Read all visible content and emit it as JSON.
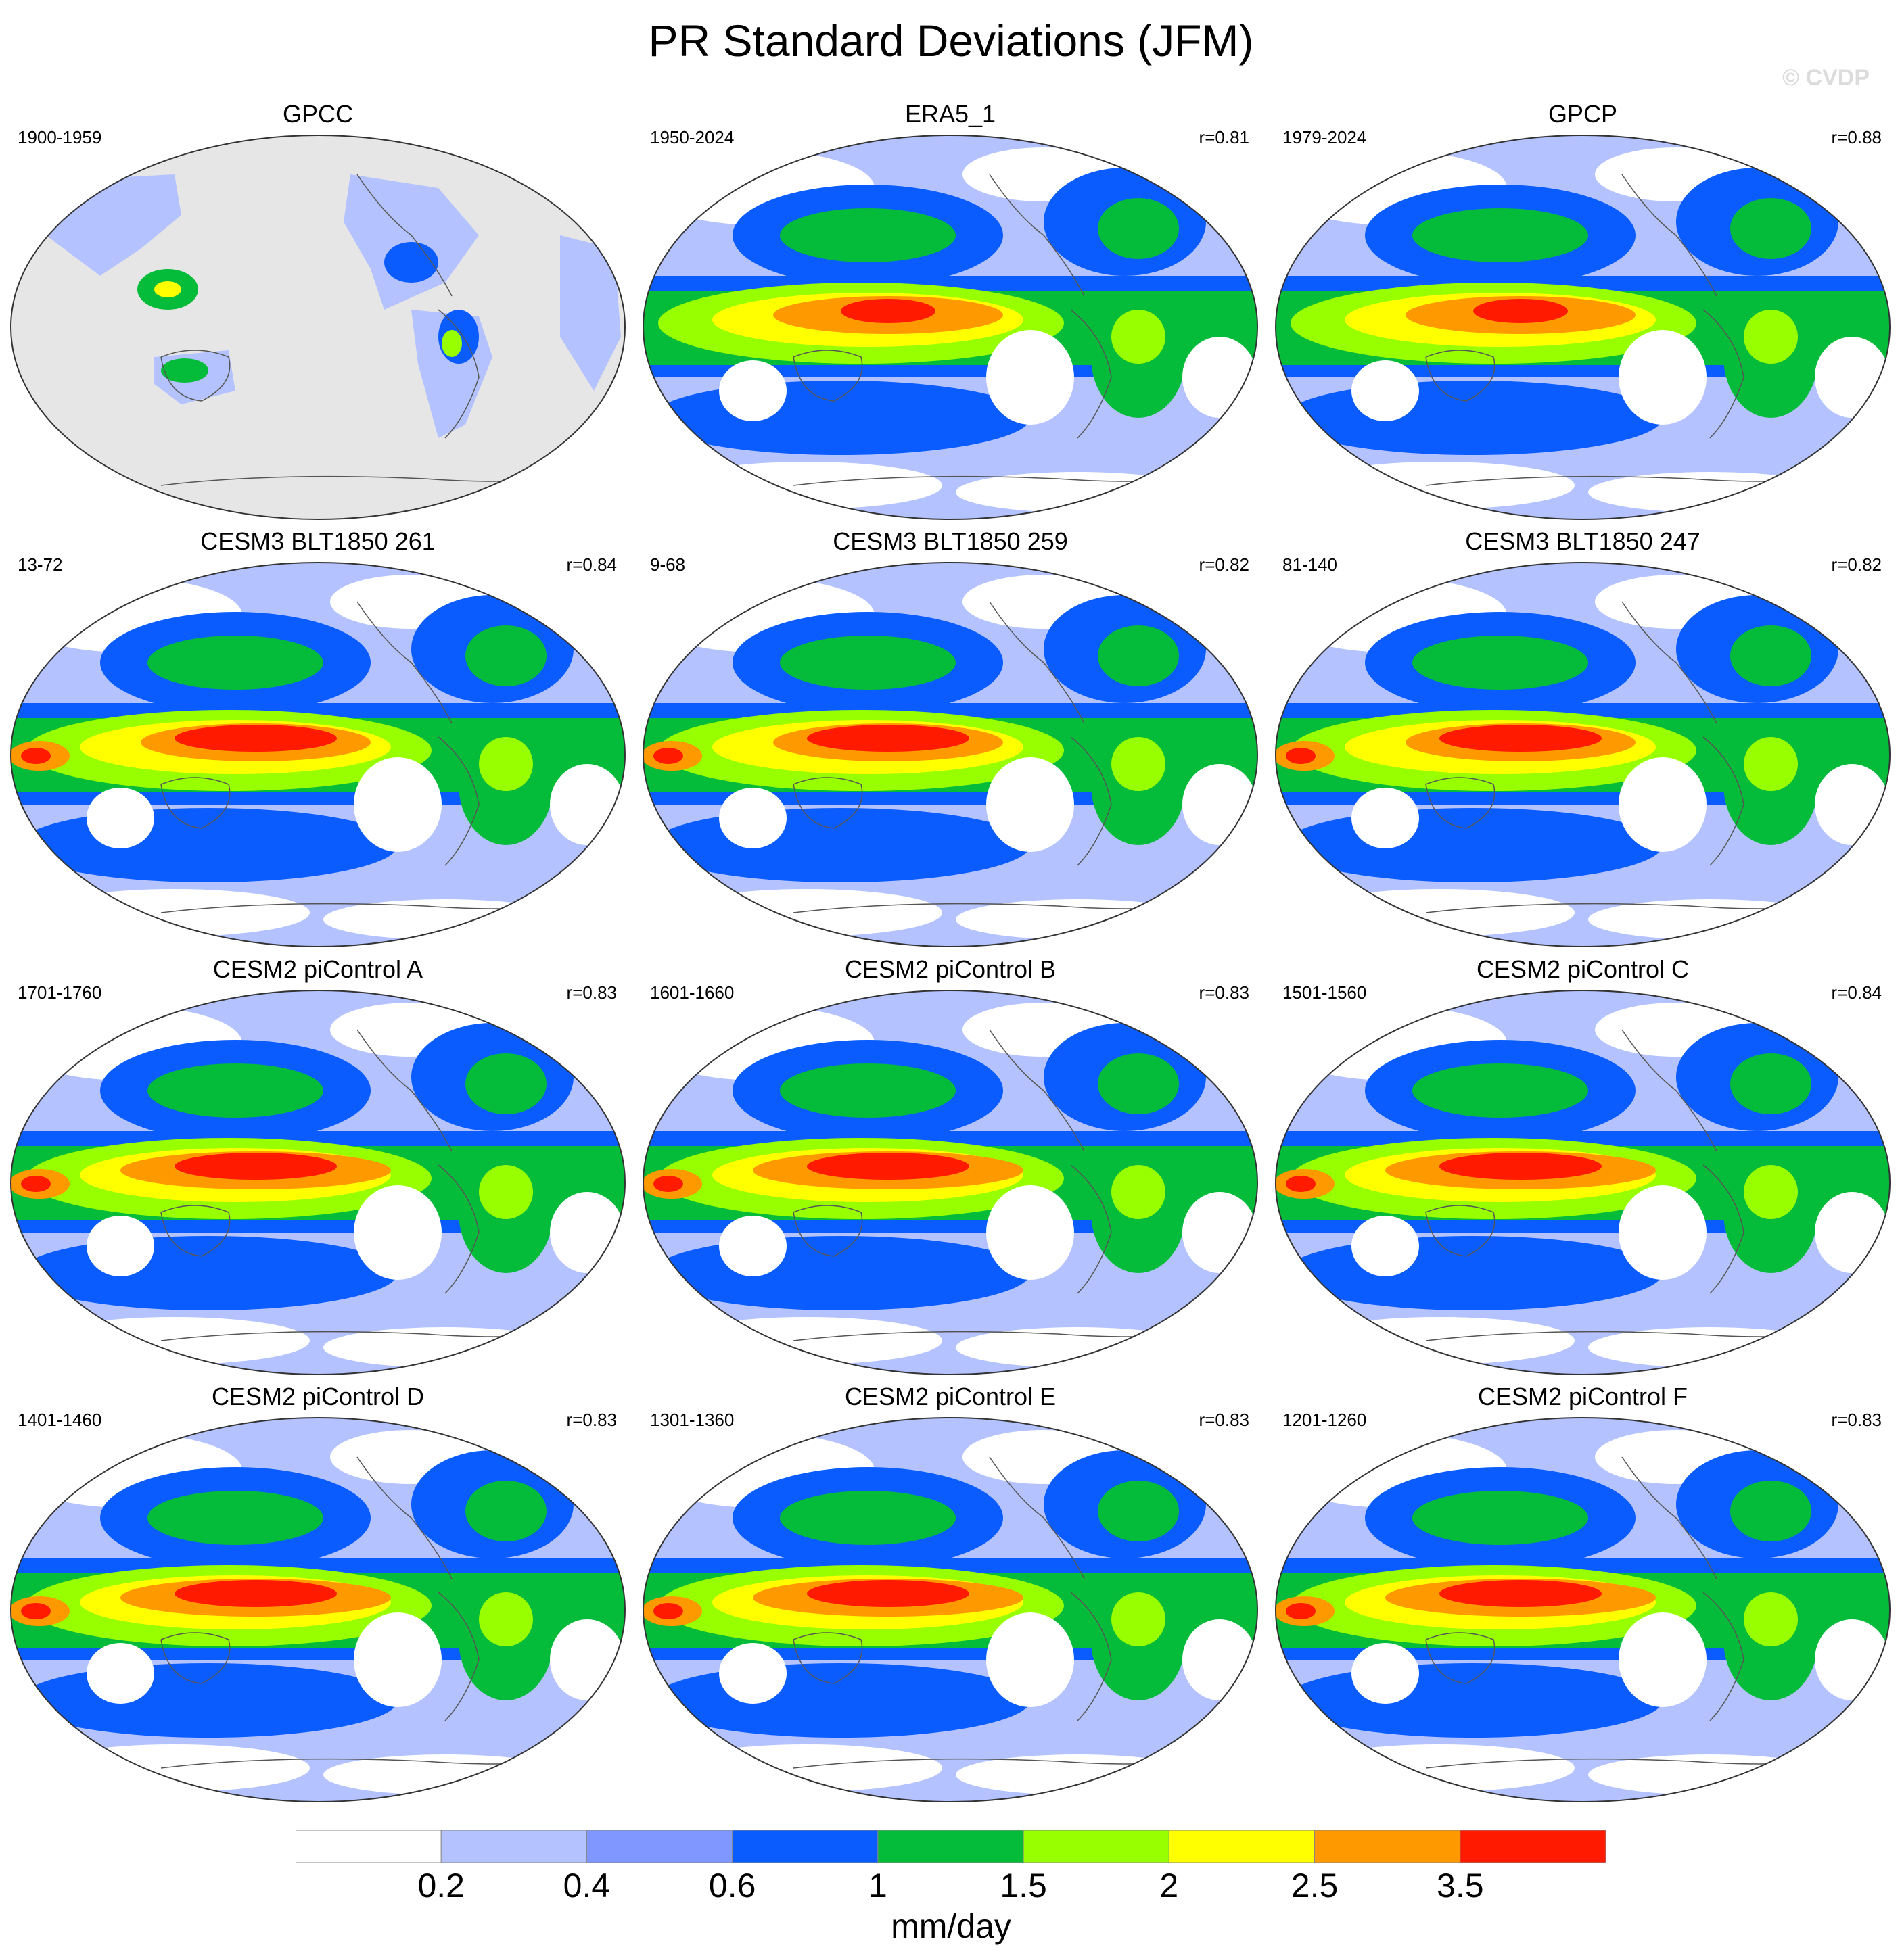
{
  "title": "PR Standard Deviations (JFM)",
  "copyright": "© CVDP",
  "panels": [
    {
      "name": "GPCC",
      "period": "1900-1959",
      "r": ""
    },
    {
      "name": "ERA5_1",
      "period": "1950-2024",
      "r": "r=0.81"
    },
    {
      "name": "GPCP",
      "period": "1979-2024",
      "r": "r=0.88"
    },
    {
      "name": "CESM3 BLT1850 261",
      "period": "13-72",
      "r": "r=0.84"
    },
    {
      "name": "CESM3 BLT1850 259",
      "period": "9-68",
      "r": "r=0.82"
    },
    {
      "name": "CESM3 BLT1850 247",
      "period": "81-140",
      "r": "r=0.82"
    },
    {
      "name": "CESM2 piControl A",
      "period": "1701-1760",
      "r": "r=0.83"
    },
    {
      "name": "CESM2 piControl B",
      "period": "1601-1660",
      "r": "r=0.83"
    },
    {
      "name": "CESM2 piControl C",
      "period": "1501-1560",
      "r": "r=0.84"
    },
    {
      "name": "CESM2 piControl D",
      "period": "1401-1460",
      "r": "r=0.83"
    },
    {
      "name": "CESM2 piControl E",
      "period": "1301-1360",
      "r": "r=0.83"
    },
    {
      "name": "CESM2 piControl F",
      "period": "1201-1260",
      "r": "r=0.83"
    }
  ],
  "colorbar": {
    "units": "mm/day",
    "labels": [
      "0.2",
      "0.4",
      "0.6",
      "1",
      "1.5",
      "2",
      "2.5",
      "3.5"
    ],
    "colors": [
      "#ffffff",
      "#b4c3ff",
      "#7f97ff",
      "#0a5cff",
      "#05bb3a",
      "#98ff00",
      "#ffff00",
      "#ff9900",
      "#ff1a00"
    ]
  },
  "map_colors": {
    "missing": "#e6e6e6",
    "coastline": "#555555",
    "border": "#333333"
  }
}
